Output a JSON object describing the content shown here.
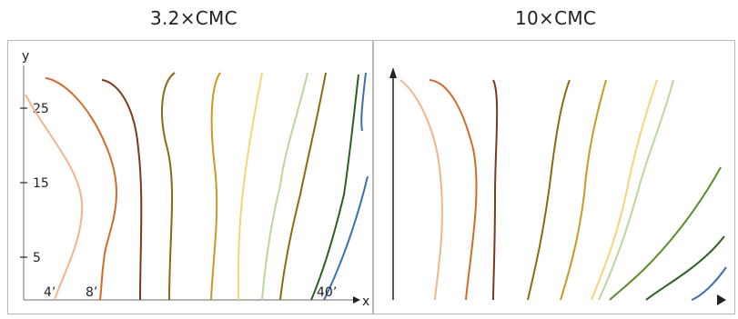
{
  "panels": [
    {
      "title": "3.2×CMC",
      "axis_x": "x",
      "axis_y": "y",
      "y_ticks": [
        "25",
        "15",
        "5"
      ],
      "curve_labels": [
        "4’",
        "8’",
        "40’"
      ]
    },
    {
      "title": "10×CMC"
    }
  ],
  "series_colors": [
    "#f2b38d",
    "#d36a2a",
    "#7a3b1c",
    "#8a6a14",
    "#c79a24",
    "#f5d57a",
    "#b9d89a",
    "#5f8c2d",
    "#2f5f1e",
    "#3b6fb0"
  ]
}
